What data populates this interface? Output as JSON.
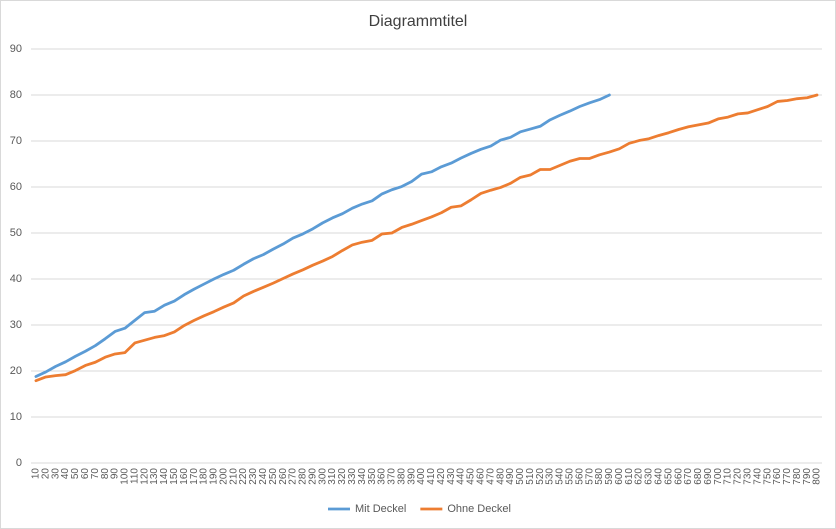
{
  "chart_data": {
    "type": "line",
    "title": "Diagrammtitel",
    "categories": [
      10,
      20,
      30,
      40,
      50,
      60,
      70,
      80,
      90,
      100,
      110,
      120,
      130,
      140,
      150,
      160,
      170,
      180,
      190,
      200,
      210,
      220,
      230,
      240,
      250,
      260,
      270,
      280,
      290,
      300,
      310,
      320,
      330,
      340,
      350,
      360,
      370,
      380,
      390,
      400,
      410,
      420,
      430,
      440,
      450,
      460,
      470,
      480,
      490,
      500,
      510,
      520,
      530,
      540,
      550,
      560,
      570,
      580,
      590,
      600,
      610,
      620,
      630,
      640,
      650,
      660,
      670,
      680,
      690,
      700,
      710,
      720,
      730,
      740,
      750,
      760,
      770,
      780,
      790,
      800
    ],
    "series": [
      {
        "name": "Mit Deckel",
        "color": "#5b9bd5",
        "values": [
          18.8,
          19.8,
          21,
          22,
          23.2,
          24.3,
          25.5,
          27,
          28.6,
          29.3,
          31,
          32.7,
          33,
          34.3,
          35.2,
          36.6,
          37.8,
          38.9,
          40,
          41,
          41.9,
          43.2,
          44.4,
          45.3,
          46.5,
          47.6,
          48.9,
          49.8,
          50.9,
          52.2,
          53.3,
          54.2,
          55.4,
          56.3,
          57,
          58.5,
          59.4,
          60.1,
          61.2,
          62.8,
          63.3,
          64.4,
          65.2,
          66.3,
          67.3,
          68.2,
          68.9,
          70.2,
          70.8,
          72,
          72.6,
          73.2,
          74.6,
          75.6,
          76.5,
          77.5,
          78.3,
          79,
          80,
          null,
          null,
          null,
          null,
          null,
          null,
          null,
          null,
          null,
          null,
          null,
          null,
          null,
          null,
          null,
          null,
          null,
          null,
          null,
          null,
          null
        ]
      },
      {
        "name": "Ohne Deckel",
        "color": "#ed7d31",
        "values": [
          17.9,
          18.7,
          19,
          19.2,
          20.1,
          21.2,
          21.9,
          23,
          23.7,
          24,
          26.1,
          26.7,
          27.3,
          27.7,
          28.5,
          29.9,
          31,
          32,
          32.9,
          33.9,
          34.8,
          36.3,
          37.3,
          38.2,
          39.1,
          40.1,
          41.1,
          42,
          43,
          43.9,
          44.9,
          46.2,
          47.4,
          48,
          48.4,
          49.8,
          50,
          51.2,
          51.9,
          52.7,
          53.5,
          54.4,
          55.6,
          55.9,
          57.2,
          58.6,
          59.3,
          59.9,
          60.8,
          62.1,
          62.6,
          63.8,
          63.8,
          64.7,
          65.6,
          66.2,
          66.2,
          67,
          67.6,
          68.3,
          69.5,
          70.1,
          70.5,
          71.2,
          71.8,
          72.5,
          73.1,
          73.5,
          73.9,
          74.8,
          75.2,
          75.9,
          76.1,
          76.8,
          77.5,
          78.6,
          78.8,
          79.2,
          79.4,
          80
        ]
      }
    ],
    "ylim": [
      0,
      90
    ],
    "yticks": [
      0,
      10,
      20,
      30,
      40,
      50,
      60,
      70,
      80,
      90
    ],
    "grid": true,
    "legend": "bottom"
  }
}
